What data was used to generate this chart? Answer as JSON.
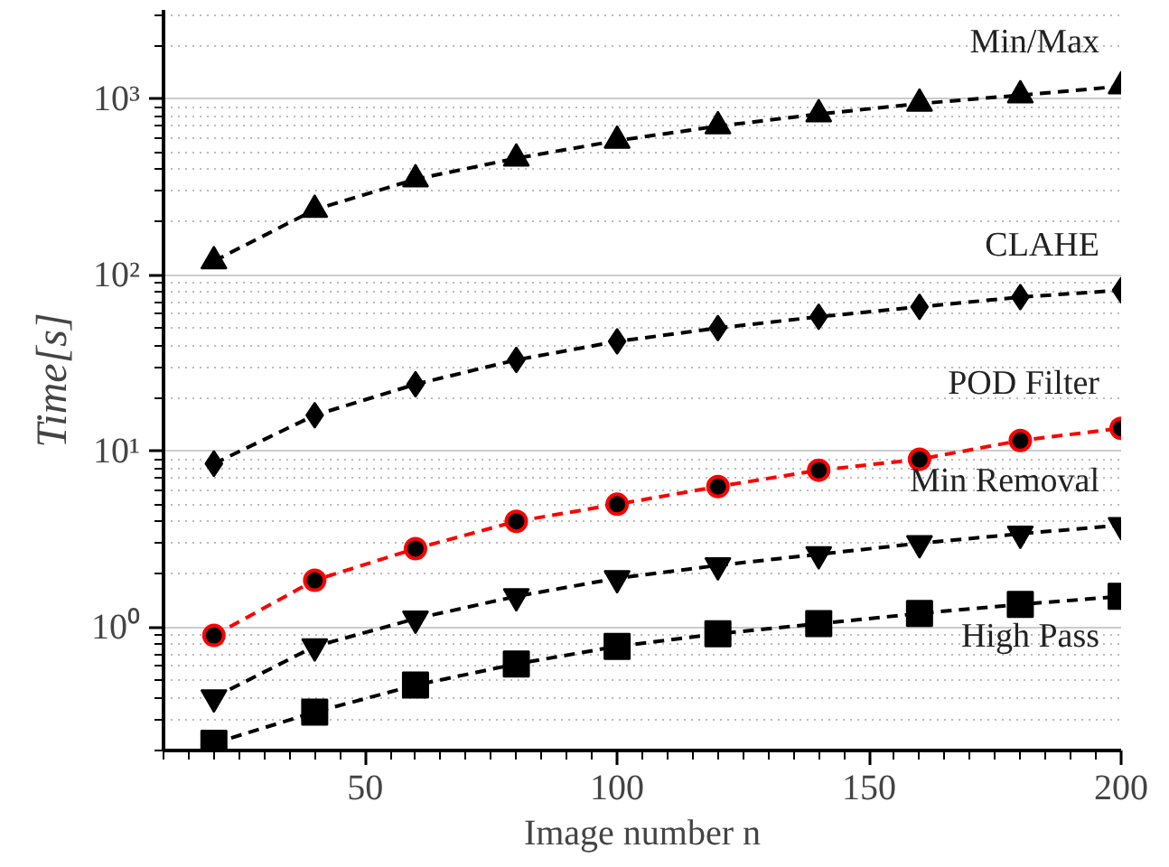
{
  "chart_data": {
    "type": "line",
    "xlabel": "Image number n",
    "ylabel": "Time[s]",
    "x": [
      20,
      40,
      60,
      80,
      100,
      120,
      140,
      160,
      180,
      200
    ],
    "series": [
      {
        "name": "Min/Max",
        "color": "#000000",
        "marker": "triangle",
        "values": [
          120,
          235,
          350,
          460,
          580,
          700,
          820,
          940,
          1050,
          1180
        ]
      },
      {
        "name": "CLAHE",
        "color": "#000000",
        "marker": "diamond",
        "values": [
          8.5,
          16,
          24,
          33,
          42,
          50,
          58,
          66,
          75,
          82
        ]
      },
      {
        "name": "POD Filter",
        "color": "#ff0000",
        "marker": "circle",
        "values": [
          0.9,
          1.85,
          2.8,
          4.0,
          5.0,
          6.3,
          7.8,
          9.0,
          11.5,
          13.5
        ]
      },
      {
        "name": "Min Removal",
        "color": "#000000",
        "marker": "triangle",
        "values": [
          0.4,
          0.78,
          1.12,
          1.5,
          1.9,
          2.25,
          2.6,
          3.0,
          3.4,
          3.8
        ]
      },
      {
        "name": "High Pass",
        "color": "#000000",
        "marker": "square",
        "values": [
          0.22,
          0.33,
          0.47,
          0.62,
          0.78,
          0.92,
          1.05,
          1.2,
          1.35,
          1.5
        ]
      }
    ],
    "log": "y",
    "grid": "y",
    "line_style": "dashed",
    "xlim": [
      10,
      200
    ],
    "xticks": [
      50,
      100,
      150,
      200
    ],
    "ylim": [
      0.2,
      3200
    ],
    "yticks": [
      {
        "value": 1,
        "label": "10⁰"
      },
      {
        "value": 10,
        "label": "10¹"
      },
      {
        "value": 100,
        "label": "10²"
      },
      {
        "value": 1000,
        "label": "10³"
      }
    ]
  }
}
